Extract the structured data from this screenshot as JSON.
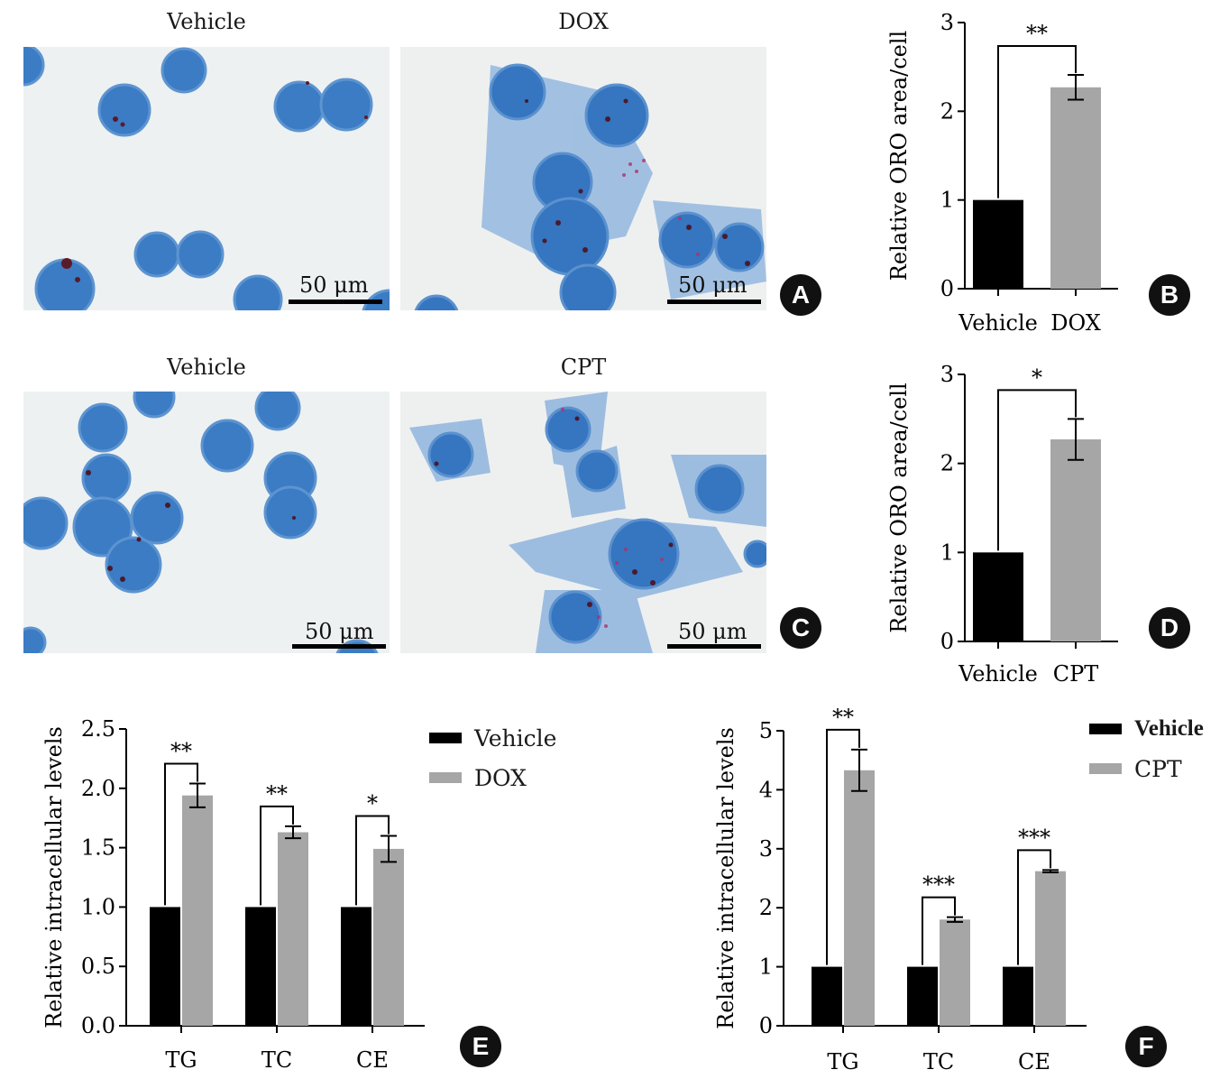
{
  "panels": {
    "A": {
      "label": "A",
      "left": {
        "title": "Vehicle",
        "scale": "50 μm"
      },
      "right": {
        "title": "DOX",
        "scale": "50 μm"
      }
    },
    "C": {
      "label": "C",
      "left": {
        "title": "Vehicle",
        "scale": "50 μm"
      },
      "right": {
        "title": "CPT",
        "scale": "50 μm"
      }
    },
    "B": {
      "label": "B"
    },
    "D": {
      "label": "D"
    },
    "E": {
      "label": "E"
    },
    "F": {
      "label": "F"
    }
  },
  "colors": {
    "vehicle": "#000000",
    "treatment": "#a6a6a6"
  },
  "chart_data": [
    {
      "id": "B",
      "type": "bar",
      "categories": [
        "Vehicle",
        "DOX"
      ],
      "values": [
        1.0,
        2.27
      ],
      "errors": [
        0,
        0.14
      ],
      "ylabel": "Relative ORO area/cell",
      "ylim": [
        0,
        3
      ],
      "yticks": [
        "0",
        "1",
        "2",
        "3"
      ],
      "significance": "**",
      "grid": false
    },
    {
      "id": "D",
      "type": "bar",
      "categories": [
        "Vehicle",
        "CPT"
      ],
      "values": [
        1.0,
        2.27
      ],
      "errors": [
        0,
        0.23
      ],
      "ylabel": "Relative ORO area/cell",
      "ylim": [
        0,
        3
      ],
      "yticks": [
        "0",
        "1",
        "2",
        "3"
      ],
      "significance": "*",
      "grid": false
    },
    {
      "id": "E",
      "type": "bar",
      "categories": [
        "TG",
        "TC",
        "CE"
      ],
      "series": [
        {
          "name": "Vehicle",
          "values": [
            1.0,
            1.0,
            1.0
          ],
          "errors": [
            0,
            0,
            0
          ]
        },
        {
          "name": "DOX",
          "values": [
            1.94,
            1.63,
            1.49
          ],
          "errors": [
            0.1,
            0.05,
            0.11
          ]
        }
      ],
      "significance": [
        "**",
        "**",
        "*"
      ],
      "ylabel": "Relative intracellular levels",
      "ylim": [
        0,
        2.5
      ],
      "yticks": [
        "0.0",
        "0.5",
        "1.0",
        "1.5",
        "2.0",
        "2.5"
      ],
      "legend": "top-right",
      "grid": false
    },
    {
      "id": "F",
      "type": "bar",
      "categories": [
        "TG",
        "TC",
        "CE"
      ],
      "series": [
        {
          "name": "Vehicle",
          "values": [
            1.0,
            1.0,
            1.0
          ],
          "errors": [
            0,
            0,
            0
          ]
        },
        {
          "name": "CPT",
          "values": [
            4.33,
            1.8,
            2.62
          ],
          "errors": [
            0.35,
            0.04,
            0.02
          ]
        }
      ],
      "significance": [
        "**",
        "***",
        "***"
      ],
      "ylabel": "Relative intracellular levels",
      "ylim": [
        0,
        5
      ],
      "yticks": [
        "0",
        "1",
        "2",
        "3",
        "4",
        "5"
      ],
      "legend": "top-right",
      "grid": false
    }
  ]
}
